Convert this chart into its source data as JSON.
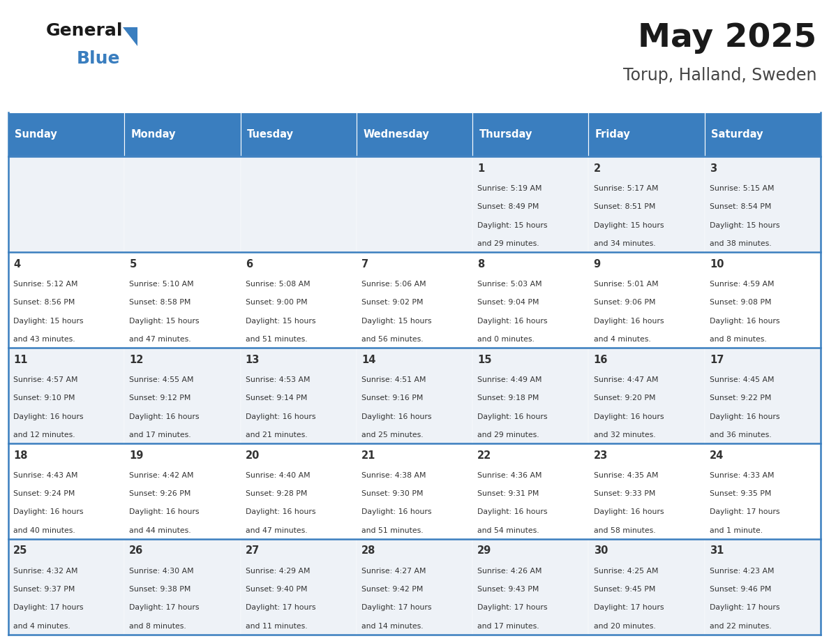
{
  "title": "May 2025",
  "subtitle": "Torup, Halland, Sweden",
  "header_bg": "#3a7ebf",
  "header_text": "#ffffff",
  "row_bg_odd": "#eef2f7",
  "row_bg_even": "#ffffff",
  "border_color": "#3a7ebf",
  "text_color": "#333333",
  "day_headers": [
    "Sunday",
    "Monday",
    "Tuesday",
    "Wednesday",
    "Thursday",
    "Friday",
    "Saturday"
  ],
  "days": [
    {
      "day": 1,
      "col": 4,
      "row": 0,
      "sunrise": "5:19 AM",
      "sunset": "8:49 PM",
      "daylight": "15 hours and 29 minutes."
    },
    {
      "day": 2,
      "col": 5,
      "row": 0,
      "sunrise": "5:17 AM",
      "sunset": "8:51 PM",
      "daylight": "15 hours and 34 minutes."
    },
    {
      "day": 3,
      "col": 6,
      "row": 0,
      "sunrise": "5:15 AM",
      "sunset": "8:54 PM",
      "daylight": "15 hours and 38 minutes."
    },
    {
      "day": 4,
      "col": 0,
      "row": 1,
      "sunrise": "5:12 AM",
      "sunset": "8:56 PM",
      "daylight": "15 hours and 43 minutes."
    },
    {
      "day": 5,
      "col": 1,
      "row": 1,
      "sunrise": "5:10 AM",
      "sunset": "8:58 PM",
      "daylight": "15 hours and 47 minutes."
    },
    {
      "day": 6,
      "col": 2,
      "row": 1,
      "sunrise": "5:08 AM",
      "sunset": "9:00 PM",
      "daylight": "15 hours and 51 minutes."
    },
    {
      "day": 7,
      "col": 3,
      "row": 1,
      "sunrise": "5:06 AM",
      "sunset": "9:02 PM",
      "daylight": "15 hours and 56 minutes."
    },
    {
      "day": 8,
      "col": 4,
      "row": 1,
      "sunrise": "5:03 AM",
      "sunset": "9:04 PM",
      "daylight": "16 hours and 0 minutes."
    },
    {
      "day": 9,
      "col": 5,
      "row": 1,
      "sunrise": "5:01 AM",
      "sunset": "9:06 PM",
      "daylight": "16 hours and 4 minutes."
    },
    {
      "day": 10,
      "col": 6,
      "row": 1,
      "sunrise": "4:59 AM",
      "sunset": "9:08 PM",
      "daylight": "16 hours and 8 minutes."
    },
    {
      "day": 11,
      "col": 0,
      "row": 2,
      "sunrise": "4:57 AM",
      "sunset": "9:10 PM",
      "daylight": "16 hours and 12 minutes."
    },
    {
      "day": 12,
      "col": 1,
      "row": 2,
      "sunrise": "4:55 AM",
      "sunset": "9:12 PM",
      "daylight": "16 hours and 17 minutes."
    },
    {
      "day": 13,
      "col": 2,
      "row": 2,
      "sunrise": "4:53 AM",
      "sunset": "9:14 PM",
      "daylight": "16 hours and 21 minutes."
    },
    {
      "day": 14,
      "col": 3,
      "row": 2,
      "sunrise": "4:51 AM",
      "sunset": "9:16 PM",
      "daylight": "16 hours and 25 minutes."
    },
    {
      "day": 15,
      "col": 4,
      "row": 2,
      "sunrise": "4:49 AM",
      "sunset": "9:18 PM",
      "daylight": "16 hours and 29 minutes."
    },
    {
      "day": 16,
      "col": 5,
      "row": 2,
      "sunrise": "4:47 AM",
      "sunset": "9:20 PM",
      "daylight": "16 hours and 32 minutes."
    },
    {
      "day": 17,
      "col": 6,
      "row": 2,
      "sunrise": "4:45 AM",
      "sunset": "9:22 PM",
      "daylight": "16 hours and 36 minutes."
    },
    {
      "day": 18,
      "col": 0,
      "row": 3,
      "sunrise": "4:43 AM",
      "sunset": "9:24 PM",
      "daylight": "16 hours and 40 minutes."
    },
    {
      "day": 19,
      "col": 1,
      "row": 3,
      "sunrise": "4:42 AM",
      "sunset": "9:26 PM",
      "daylight": "16 hours and 44 minutes."
    },
    {
      "day": 20,
      "col": 2,
      "row": 3,
      "sunrise": "4:40 AM",
      "sunset": "9:28 PM",
      "daylight": "16 hours and 47 minutes."
    },
    {
      "day": 21,
      "col": 3,
      "row": 3,
      "sunrise": "4:38 AM",
      "sunset": "9:30 PM",
      "daylight": "16 hours and 51 minutes."
    },
    {
      "day": 22,
      "col": 4,
      "row": 3,
      "sunrise": "4:36 AM",
      "sunset": "9:31 PM",
      "daylight": "16 hours and 54 minutes."
    },
    {
      "day": 23,
      "col": 5,
      "row": 3,
      "sunrise": "4:35 AM",
      "sunset": "9:33 PM",
      "daylight": "16 hours and 58 minutes."
    },
    {
      "day": 24,
      "col": 6,
      "row": 3,
      "sunrise": "4:33 AM",
      "sunset": "9:35 PM",
      "daylight": "17 hours and 1 minute."
    },
    {
      "day": 25,
      "col": 0,
      "row": 4,
      "sunrise": "4:32 AM",
      "sunset": "9:37 PM",
      "daylight": "17 hours and 4 minutes."
    },
    {
      "day": 26,
      "col": 1,
      "row": 4,
      "sunrise": "4:30 AM",
      "sunset": "9:38 PM",
      "daylight": "17 hours and 8 minutes."
    },
    {
      "day": 27,
      "col": 2,
      "row": 4,
      "sunrise": "4:29 AM",
      "sunset": "9:40 PM",
      "daylight": "17 hours and 11 minutes."
    },
    {
      "day": 28,
      "col": 3,
      "row": 4,
      "sunrise": "4:27 AM",
      "sunset": "9:42 PM",
      "daylight": "17 hours and 14 minutes."
    },
    {
      "day": 29,
      "col": 4,
      "row": 4,
      "sunrise": "4:26 AM",
      "sunset": "9:43 PM",
      "daylight": "17 hours and 17 minutes."
    },
    {
      "day": 30,
      "col": 5,
      "row": 4,
      "sunrise": "4:25 AM",
      "sunset": "9:45 PM",
      "daylight": "17 hours and 20 minutes."
    },
    {
      "day": 31,
      "col": 6,
      "row": 4,
      "sunrise": "4:23 AM",
      "sunset": "9:46 PM",
      "daylight": "17 hours and 22 minutes."
    }
  ]
}
